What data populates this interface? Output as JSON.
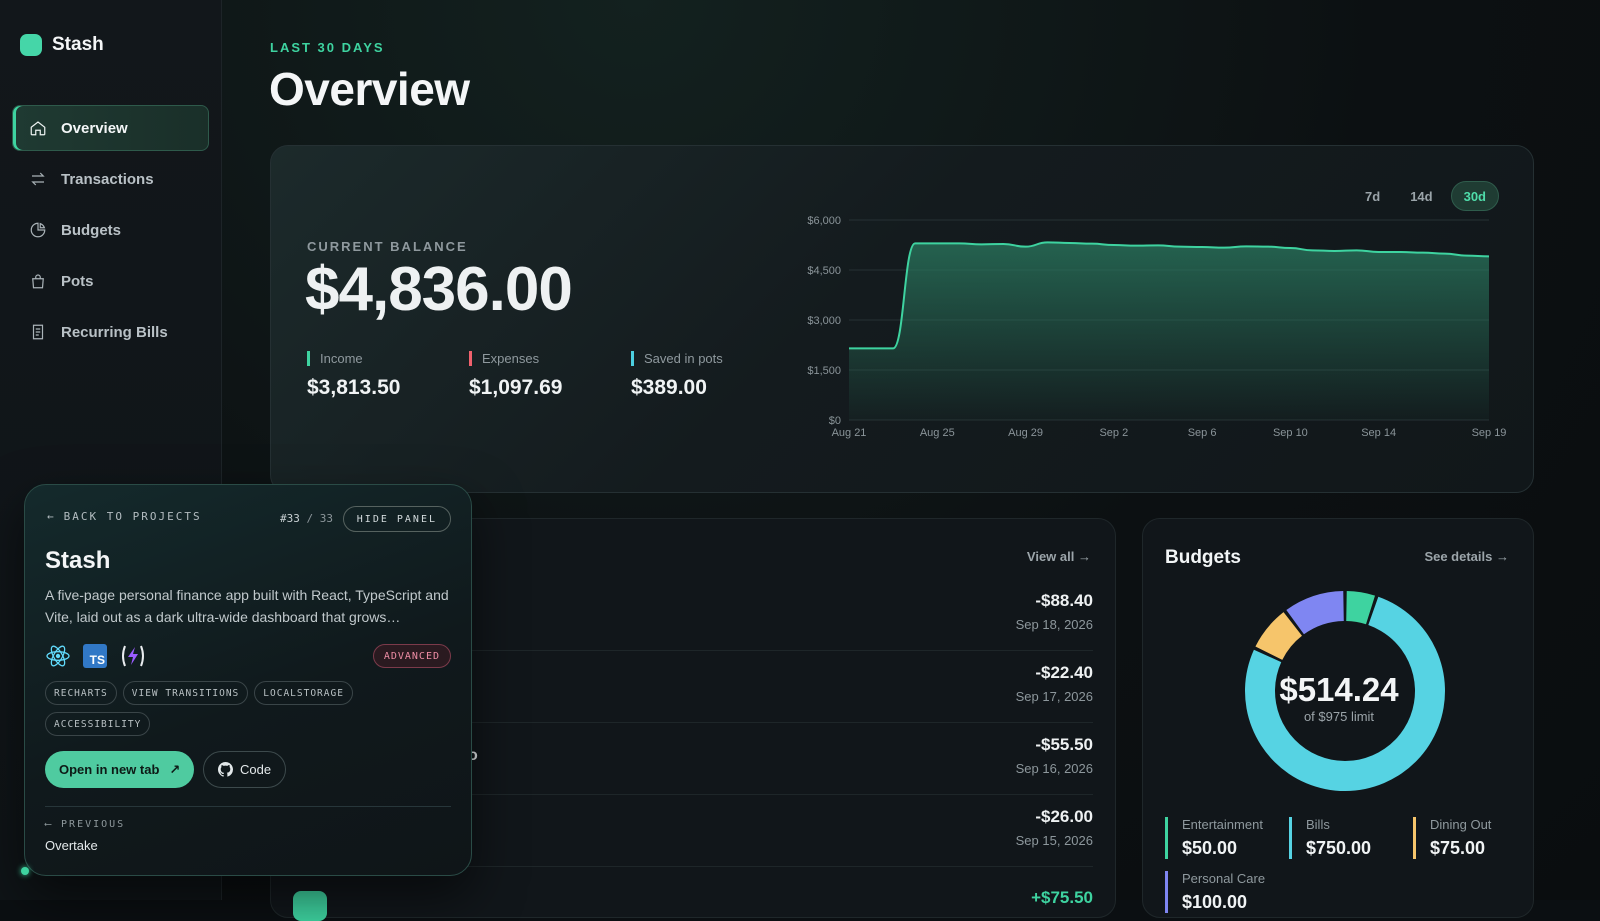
{
  "app": {
    "name": "Stash"
  },
  "sidebar": {
    "items": [
      {
        "label": "Overview",
        "icon": "home-icon",
        "active": true
      },
      {
        "label": "Transactions",
        "icon": "arrows-swap-icon"
      },
      {
        "label": "Budgets",
        "icon": "pie-chart-icon"
      },
      {
        "label": "Pots",
        "icon": "bag-icon"
      },
      {
        "label": "Recurring Bills",
        "icon": "receipt-icon"
      }
    ]
  },
  "header": {
    "eyebrow": "LAST 30 DAYS",
    "title": "Overview"
  },
  "balance": {
    "label": "CURRENT BALANCE",
    "value": "$4,836.00",
    "stats": [
      {
        "label": "Income",
        "value": "$3,813.50",
        "color": "#3ed3a0"
      },
      {
        "label": "Expenses",
        "value": "$1,097.69",
        "color": "#f0616d"
      },
      {
        "label": "Saved in pots",
        "value": "$389.00",
        "color": "#4ccfe0"
      }
    ],
    "range_tabs": [
      {
        "label": "7d"
      },
      {
        "label": "14d"
      },
      {
        "label": "30d",
        "active": true
      }
    ]
  },
  "chart_data": {
    "type": "area",
    "x": [
      "Aug 21",
      "Aug 22",
      "Aug 23",
      "Aug 24",
      "Aug 25",
      "Aug 26",
      "Aug 27",
      "Aug 28",
      "Aug 29",
      "Aug 30",
      "Aug 31",
      "Sep 1",
      "Sep 2",
      "Sep 3",
      "Sep 4",
      "Sep 5",
      "Sep 6",
      "Sep 7",
      "Sep 8",
      "Sep 9",
      "Sep 10",
      "Sep 11",
      "Sep 12",
      "Sep 13",
      "Sep 14",
      "Sep 15",
      "Sep 16",
      "Sep 17",
      "Sep 18",
      "Sep 19"
    ],
    "values": [
      2150,
      2150,
      2150,
      5300,
      5300,
      5300,
      5270,
      5280,
      5200,
      5330,
      5310,
      5290,
      5250,
      5230,
      5240,
      5200,
      5190,
      5170,
      5210,
      5200,
      5160,
      5090,
      5070,
      5090,
      5040,
      5040,
      5020,
      4990,
      4930,
      4910
    ],
    "x_ticks": [
      "Aug 21",
      "Aug 25",
      "Aug 29",
      "Sep 2",
      "Sep 6",
      "Sep 10",
      "Sep 14",
      "Sep 19"
    ],
    "y_ticks": [
      "$0",
      "$1,500",
      "$3,000",
      "$4,500",
      "$6,000"
    ],
    "ylim": [
      0,
      6000
    ],
    "grid": true,
    "colors": {
      "line": "#3ed3a0",
      "fill": "#2a7a60"
    }
  },
  "transactions": {
    "view_all": "View all",
    "rows": [
      {
        "amount": "-$88.40",
        "date": "Sep 18, 2026",
        "name_visible": ""
      },
      {
        "amount": "-$22.40",
        "date": "Sep 17, 2026",
        "name_visible": ""
      },
      {
        "amount": "-$55.50",
        "date": "Sep 16, 2026",
        "name_visible": "o"
      },
      {
        "amount": "-$26.00",
        "date": "Sep 15, 2026",
        "name_visible": ""
      }
    ],
    "partial_amount": "+$75.50"
  },
  "budgets": {
    "title": "Budgets",
    "see_details": "See details",
    "total": "$514.24",
    "limit_text": "of $975 limit",
    "categories": [
      {
        "label": "Entertainment",
        "value": "$50.00",
        "amount": 50,
        "color": "#3ed3a0"
      },
      {
        "label": "Bills",
        "value": "$750.00",
        "amount": 750,
        "color": "#56d3e3"
      },
      {
        "label": "Dining Out",
        "value": "$75.00",
        "amount": 75,
        "color": "#f6c56b"
      },
      {
        "label": "Personal Care",
        "value": "$100.00",
        "amount": 100,
        "color": "#7f86f2"
      }
    ]
  },
  "panel": {
    "back_label": "BACK TO PROJECTS",
    "counter_current": "#33",
    "counter_sep": "/",
    "counter_total": "33",
    "hide_label": "HIDE PANEL",
    "title": "Stash",
    "description": "A five-page personal finance app built with React, TypeScript and Vite, laid out as a dark ultra-wide dashboard that grows…",
    "tech_icons": [
      "react-icon",
      "typescript-icon",
      "vite-icon"
    ],
    "ts_text": "TS",
    "level": "ADVANCED",
    "tags": [
      "RECHARTS",
      "VIEW TRANSITIONS",
      "LOCALSTORAGE",
      "ACCESSIBILITY"
    ],
    "open_label": "Open in new tab",
    "code_label": "Code",
    "prev_label": "PREVIOUS",
    "prev_title": "Overtake"
  }
}
